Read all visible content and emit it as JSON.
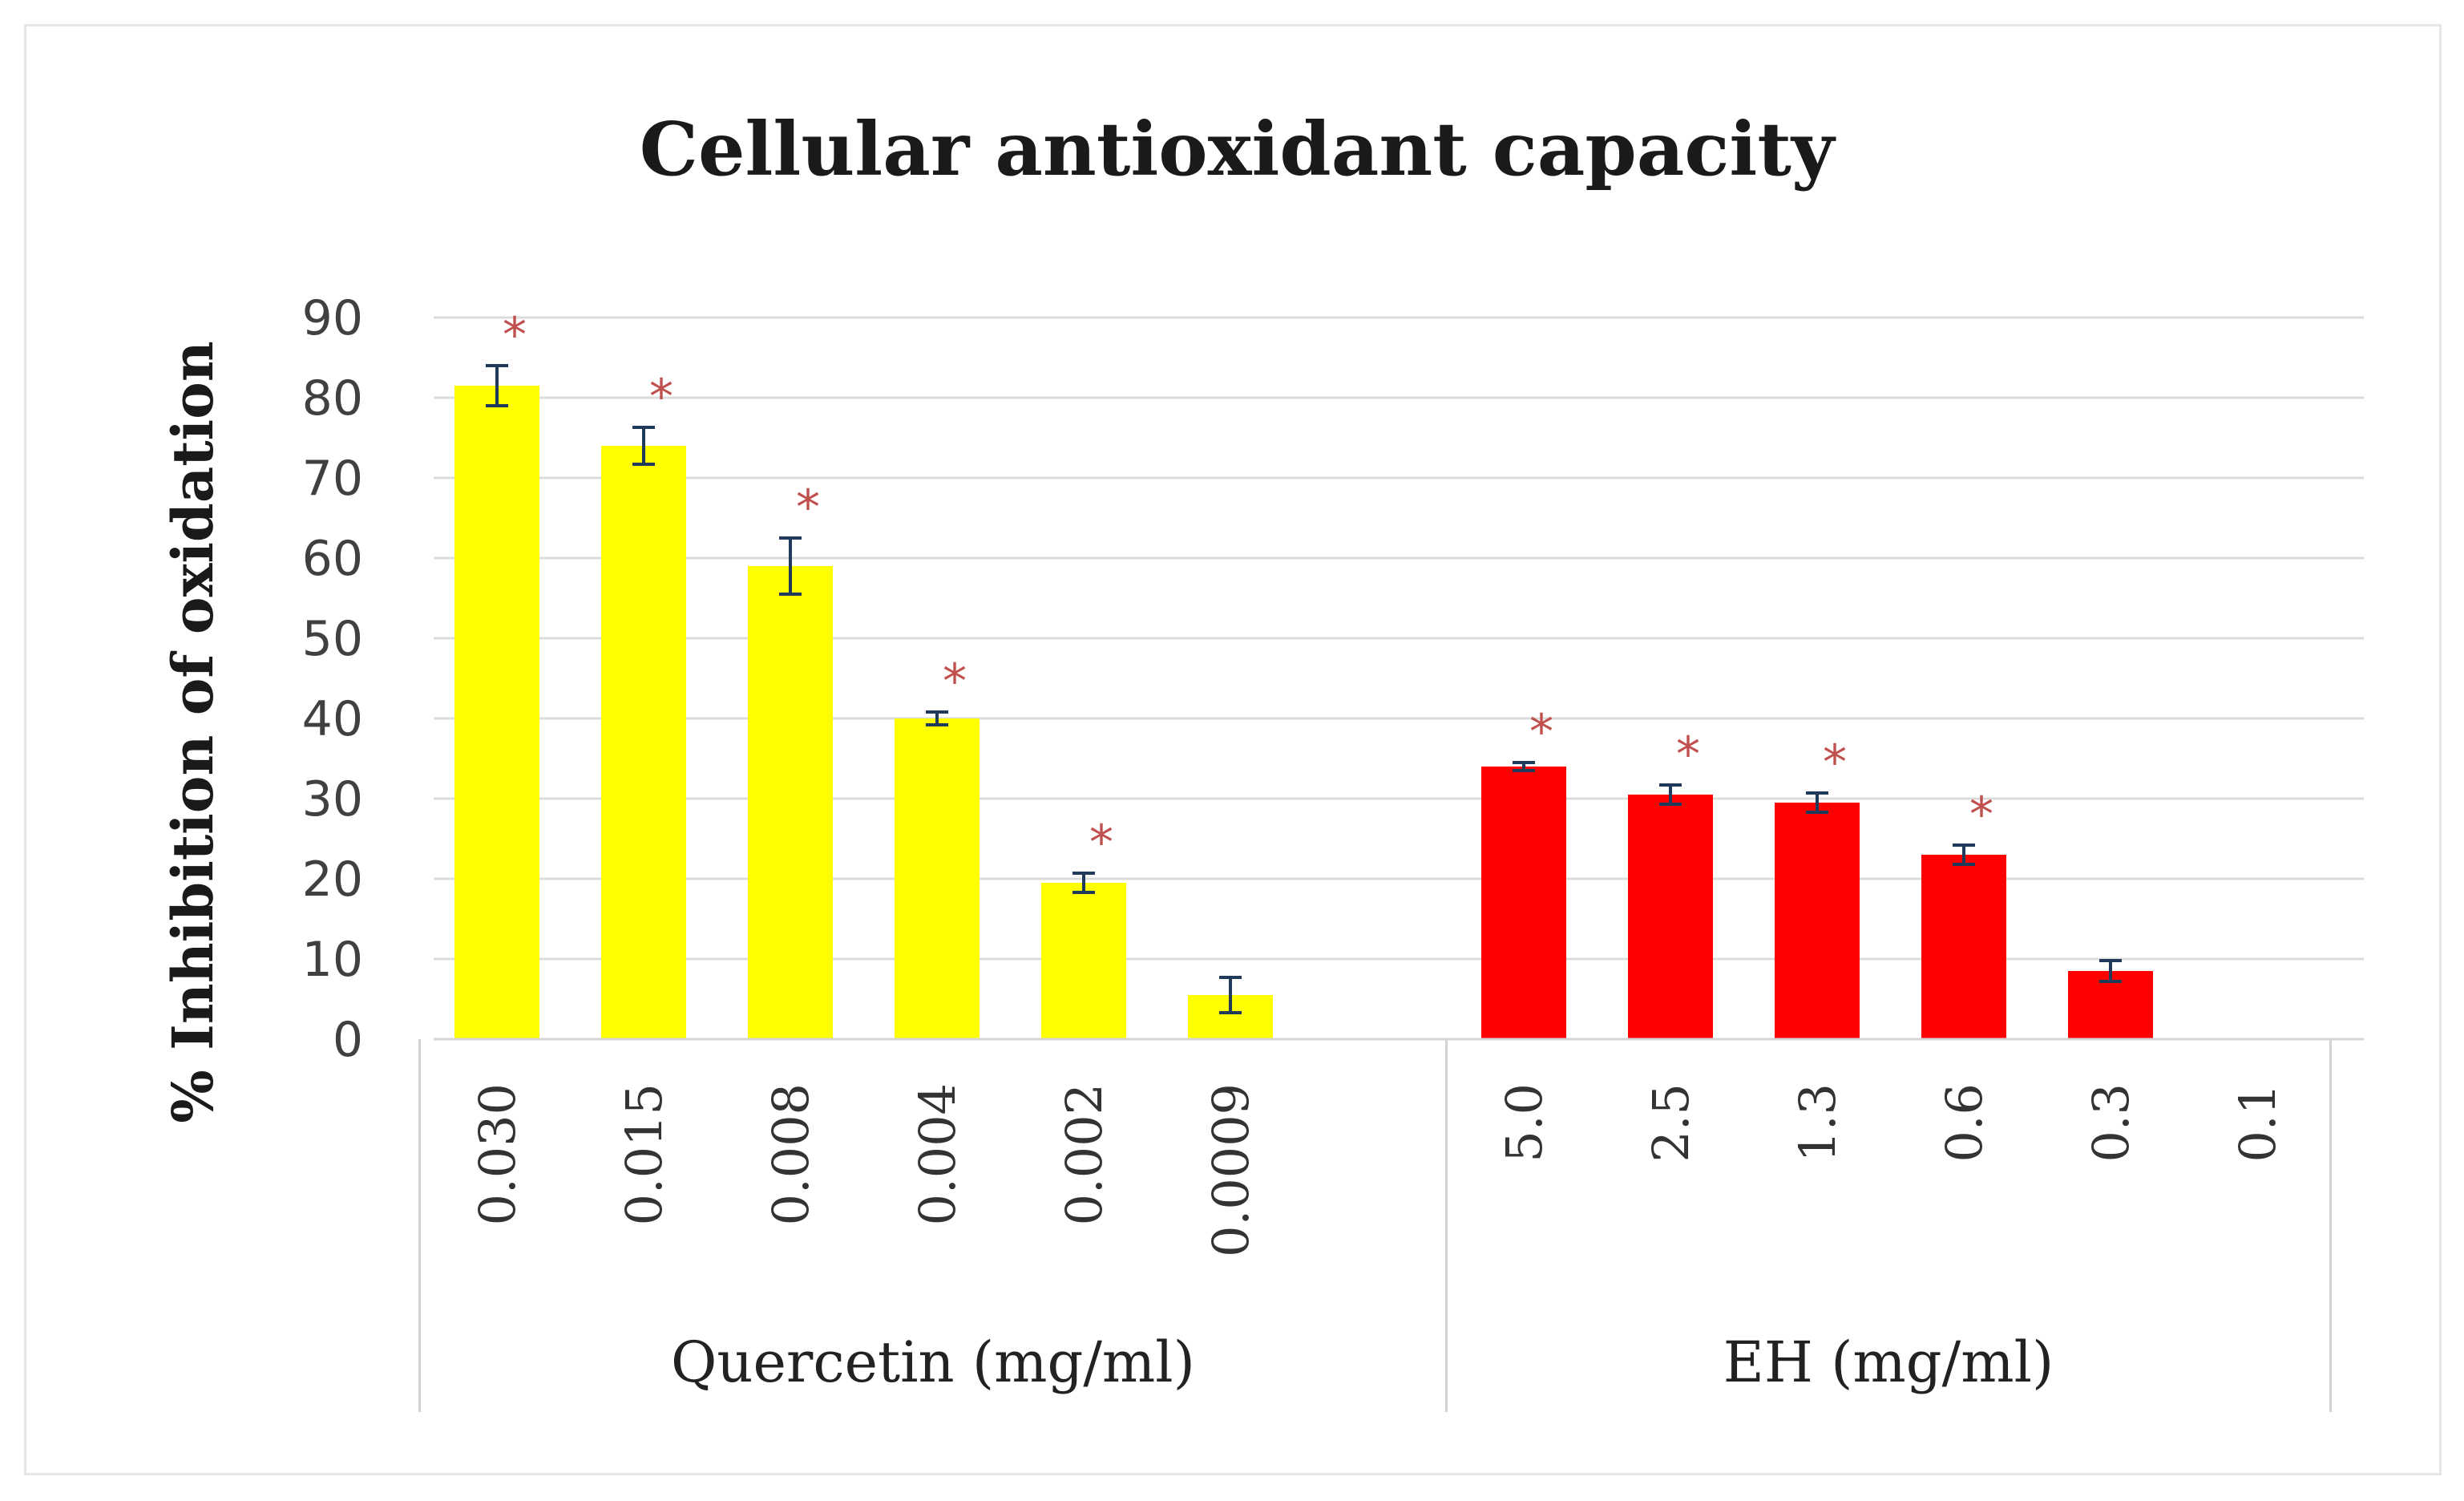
{
  "chart_data": {
    "type": "bar",
    "title": "Cellular antioxidant capacity",
    "ylabel": "% Inhibition of oxidation",
    "xlabel": "",
    "ylim": [
      0,
      90
    ],
    "yticks": [
      0,
      10,
      20,
      30,
      40,
      50,
      60,
      70,
      80,
      90
    ],
    "grid": true,
    "groups": [
      {
        "name": "Quercetin (mg/ml)",
        "color": "#ffff00",
        "categories": [
          "0.030",
          "0.015",
          "0.008",
          "0.004",
          "0.002",
          "0.0009"
        ],
        "values": [
          81.5,
          74,
          59,
          40,
          19.5,
          5.5
        ],
        "errors": [
          2.5,
          2.3,
          3.5,
          0.8,
          1.2,
          2.2
        ],
        "significant": [
          true,
          true,
          true,
          true,
          true,
          false
        ]
      },
      {
        "name": "EH (mg/ml)",
        "color": "#ff0000",
        "categories": [
          "5.0",
          "2.5",
          "1.3",
          "0.6",
          "0.3",
          "0.1"
        ],
        "values": [
          34,
          30.5,
          29.5,
          23,
          8.5,
          0
        ],
        "errors": [
          0.5,
          1.2,
          1.2,
          1.2,
          1.3,
          0
        ],
        "significant": [
          true,
          true,
          true,
          true,
          false,
          false
        ]
      }
    ],
    "significance_marker": "*",
    "significance_color": "#c0504d",
    "error_bar_color": "#1f3a5a"
  }
}
